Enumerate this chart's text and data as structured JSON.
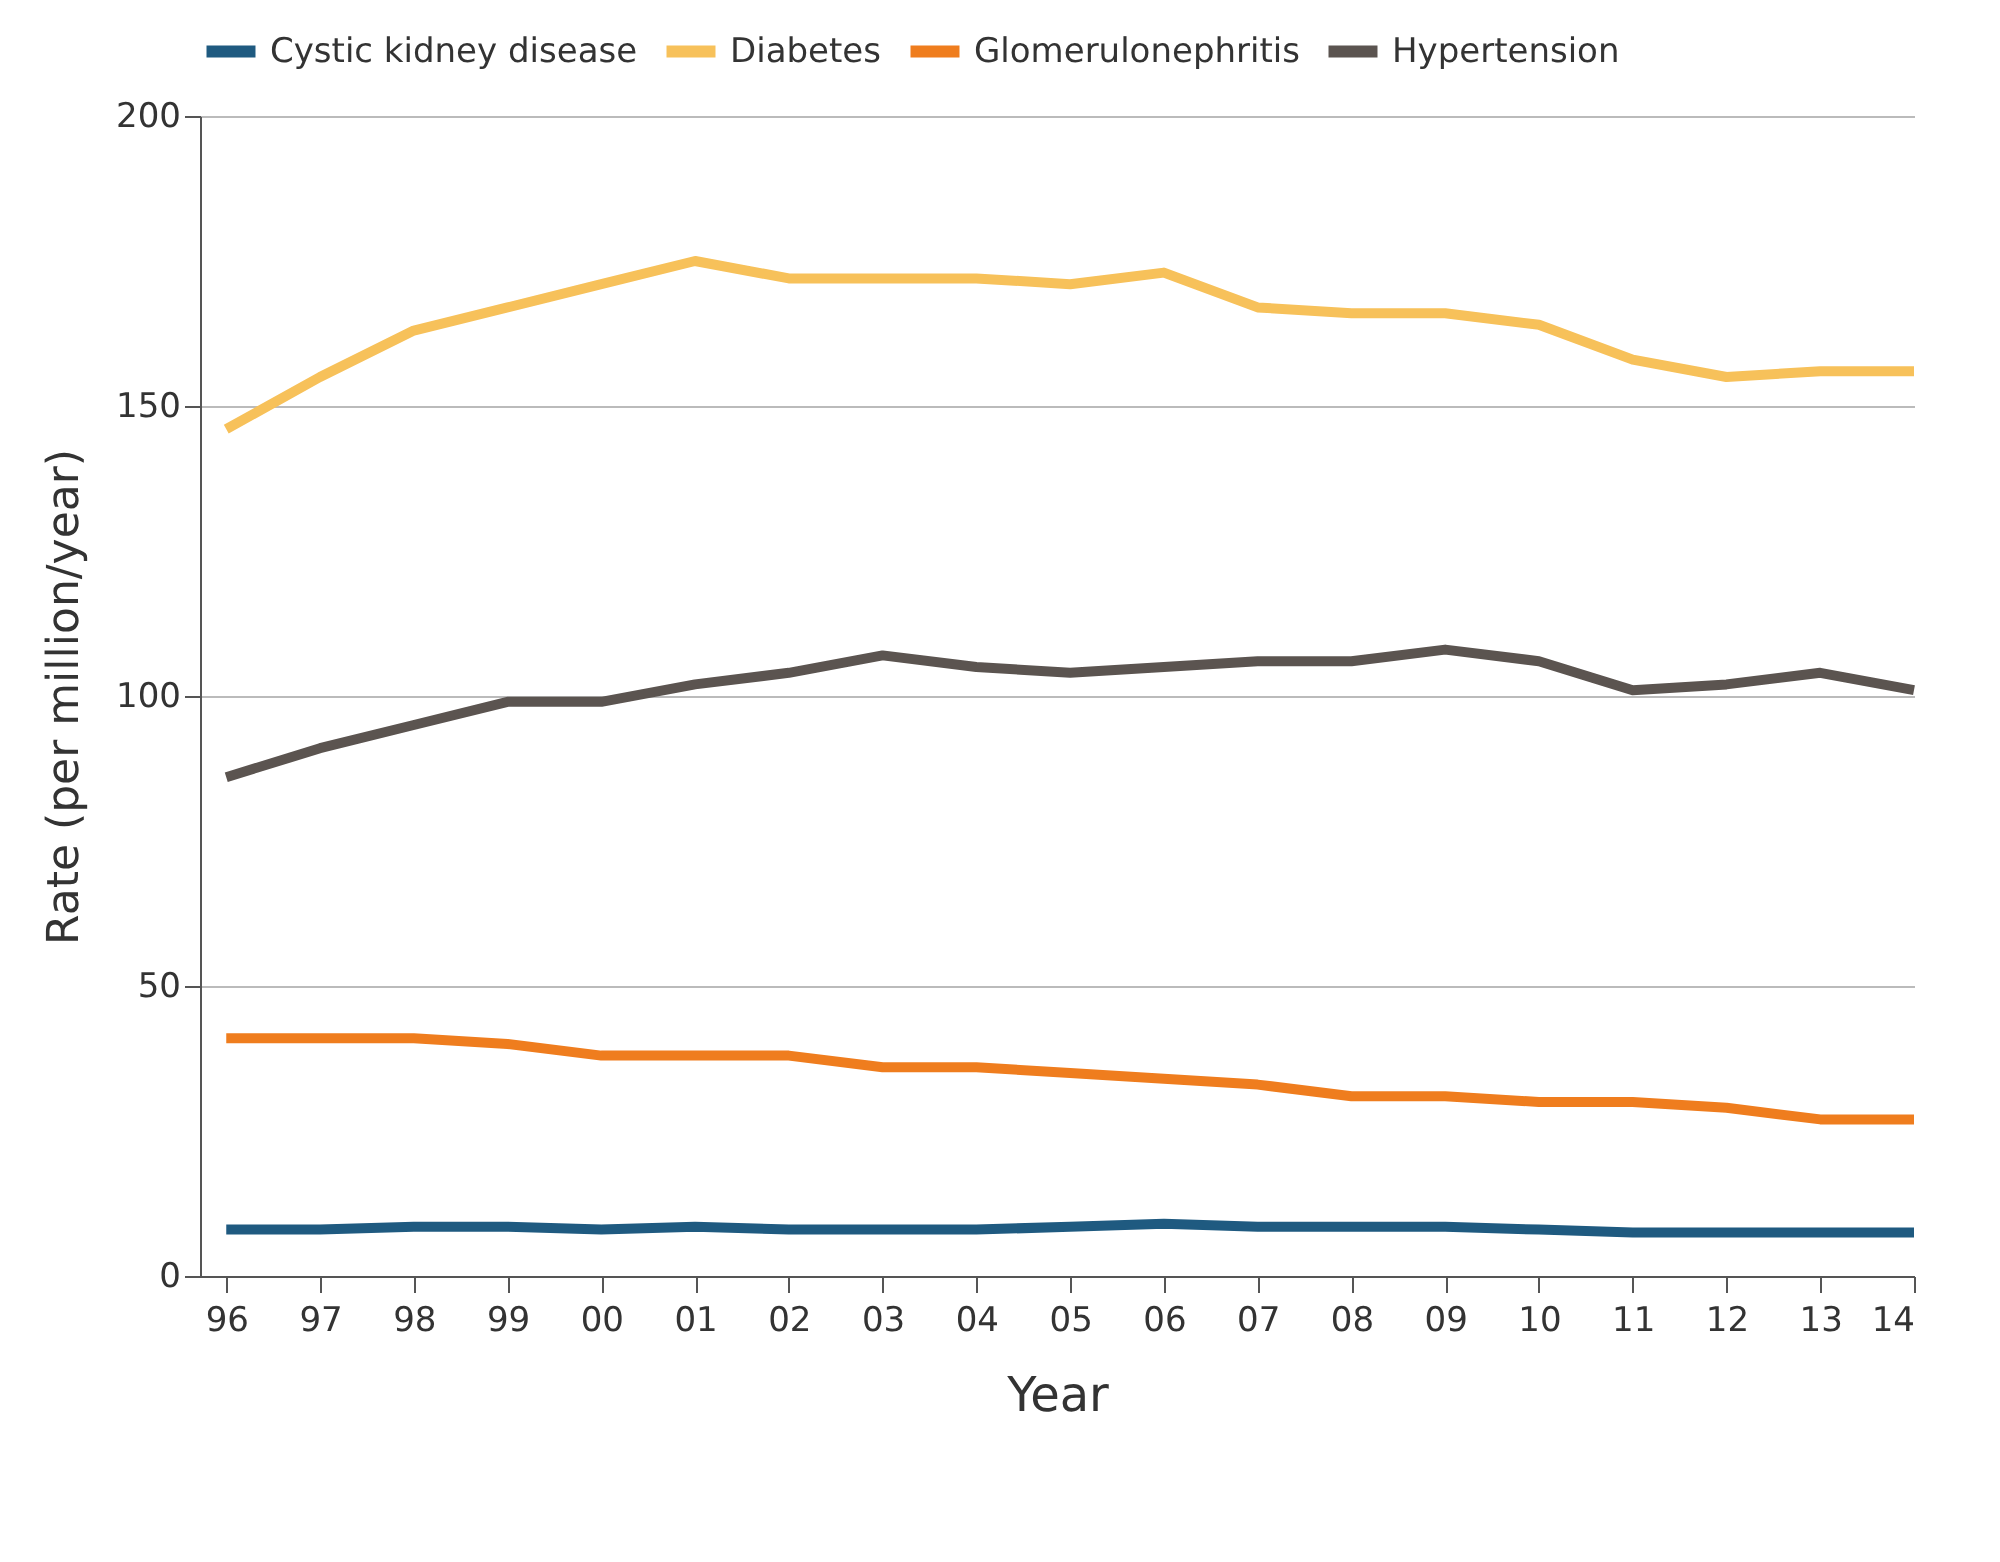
{
  "chart_data": {
    "type": "line",
    "xlabel": "Year",
    "ylabel": "Rate (per million/year)",
    "categories": [
      "96",
      "97",
      "98",
      "99",
      "00",
      "01",
      "02",
      "03",
      "04",
      "05",
      "06",
      "07",
      "08",
      "09",
      "10",
      "11",
      "12",
      "13",
      "14"
    ],
    "series": [
      {
        "name": "Cystic kidney disease",
        "color": "#1f5a80",
        "values": [
          8,
          8,
          8.5,
          8.5,
          8,
          8.5,
          8,
          8,
          8,
          8.5,
          9,
          8.5,
          8.5,
          8.5,
          8,
          7.5,
          7.5,
          7.5,
          7.5
        ]
      },
      {
        "name": "Diabetes",
        "color": "#f7c15a",
        "values": [
          146,
          155,
          163,
          167,
          171,
          175,
          172,
          172,
          172,
          171,
          173,
          167,
          166,
          166,
          164,
          158,
          155,
          156,
          156
        ]
      },
      {
        "name": "Glomerulonephritis",
        "color": "#ef7d1e",
        "values": [
          41,
          41,
          41,
          40,
          38,
          38,
          38,
          36,
          36,
          35,
          34,
          33,
          31,
          31,
          30,
          30,
          29,
          27,
          27
        ]
      },
      {
        "name": "Hypertension",
        "color": "#5b5450",
        "values": [
          86,
          91,
          95,
          99,
          99,
          102,
          104,
          107,
          105,
          104,
          105,
          106,
          106,
          108,
          106,
          101,
          102,
          104,
          101
        ]
      }
    ],
    "ylim": [
      0,
      200
    ],
    "yticks": [
      0,
      50,
      100,
      150,
      200
    ],
    "grid": "y",
    "legend": "top",
    "marker": "none",
    "line_style": "solid"
  }
}
